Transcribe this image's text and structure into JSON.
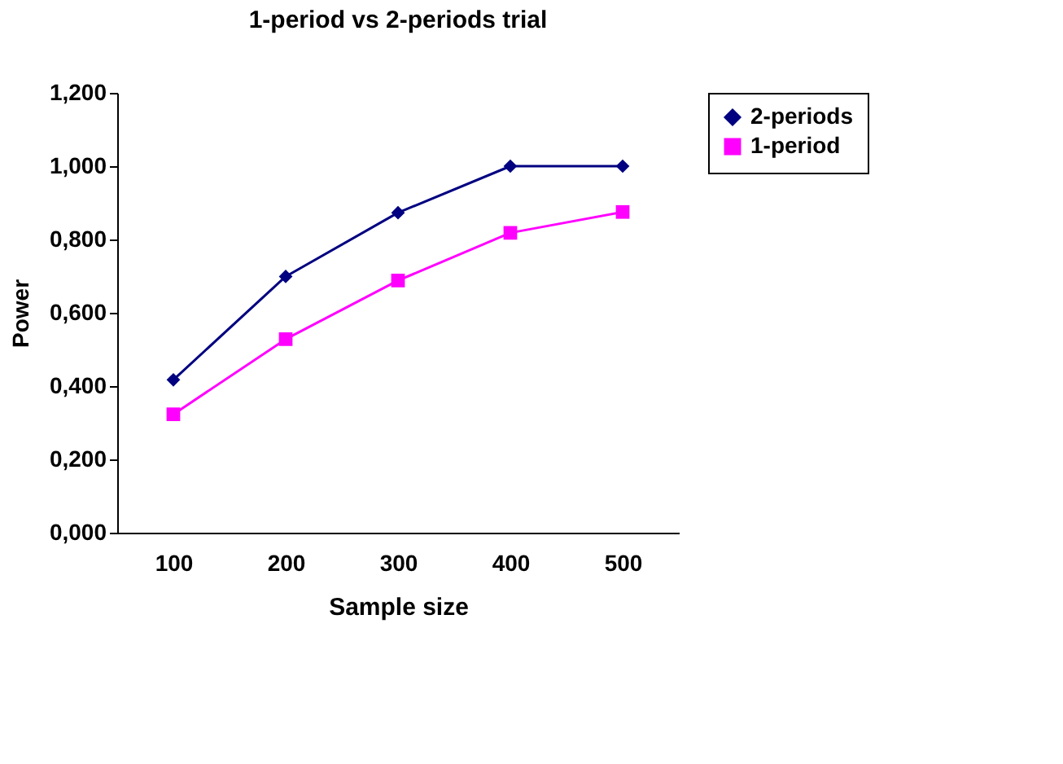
{
  "chart_data": {
    "type": "line",
    "title": "1-period vs 2-periods trial",
    "xlabel": "Sample size",
    "ylabel": "Power",
    "categories": [
      "100",
      "200",
      "300",
      "400",
      "500"
    ],
    "series": [
      {
        "name": "2-periods",
        "color": "#000080",
        "marker": "diamond",
        "values": [
          0.417,
          0.699,
          0.873,
          1.0,
          1.0
        ]
      },
      {
        "name": "1-period",
        "color": "#ff00ff",
        "marker": "square",
        "values": [
          0.323,
          0.528,
          0.688,
          0.818,
          0.875
        ]
      }
    ],
    "ylim": [
      0,
      1.2
    ],
    "yticks": [
      {
        "value": 0,
        "label": "0,000"
      },
      {
        "value": 0.2,
        "label": "0,200"
      },
      {
        "value": 0.4,
        "label": "0,400"
      },
      {
        "value": 0.6,
        "label": "0,600"
      },
      {
        "value": 0.8,
        "label": "0,800"
      },
      {
        "value": 1.0,
        "label": "1,000"
      },
      {
        "value": 1.2,
        "label": "1,200"
      }
    ],
    "grid": false,
    "legend": "right",
    "line_style": "solid"
  }
}
